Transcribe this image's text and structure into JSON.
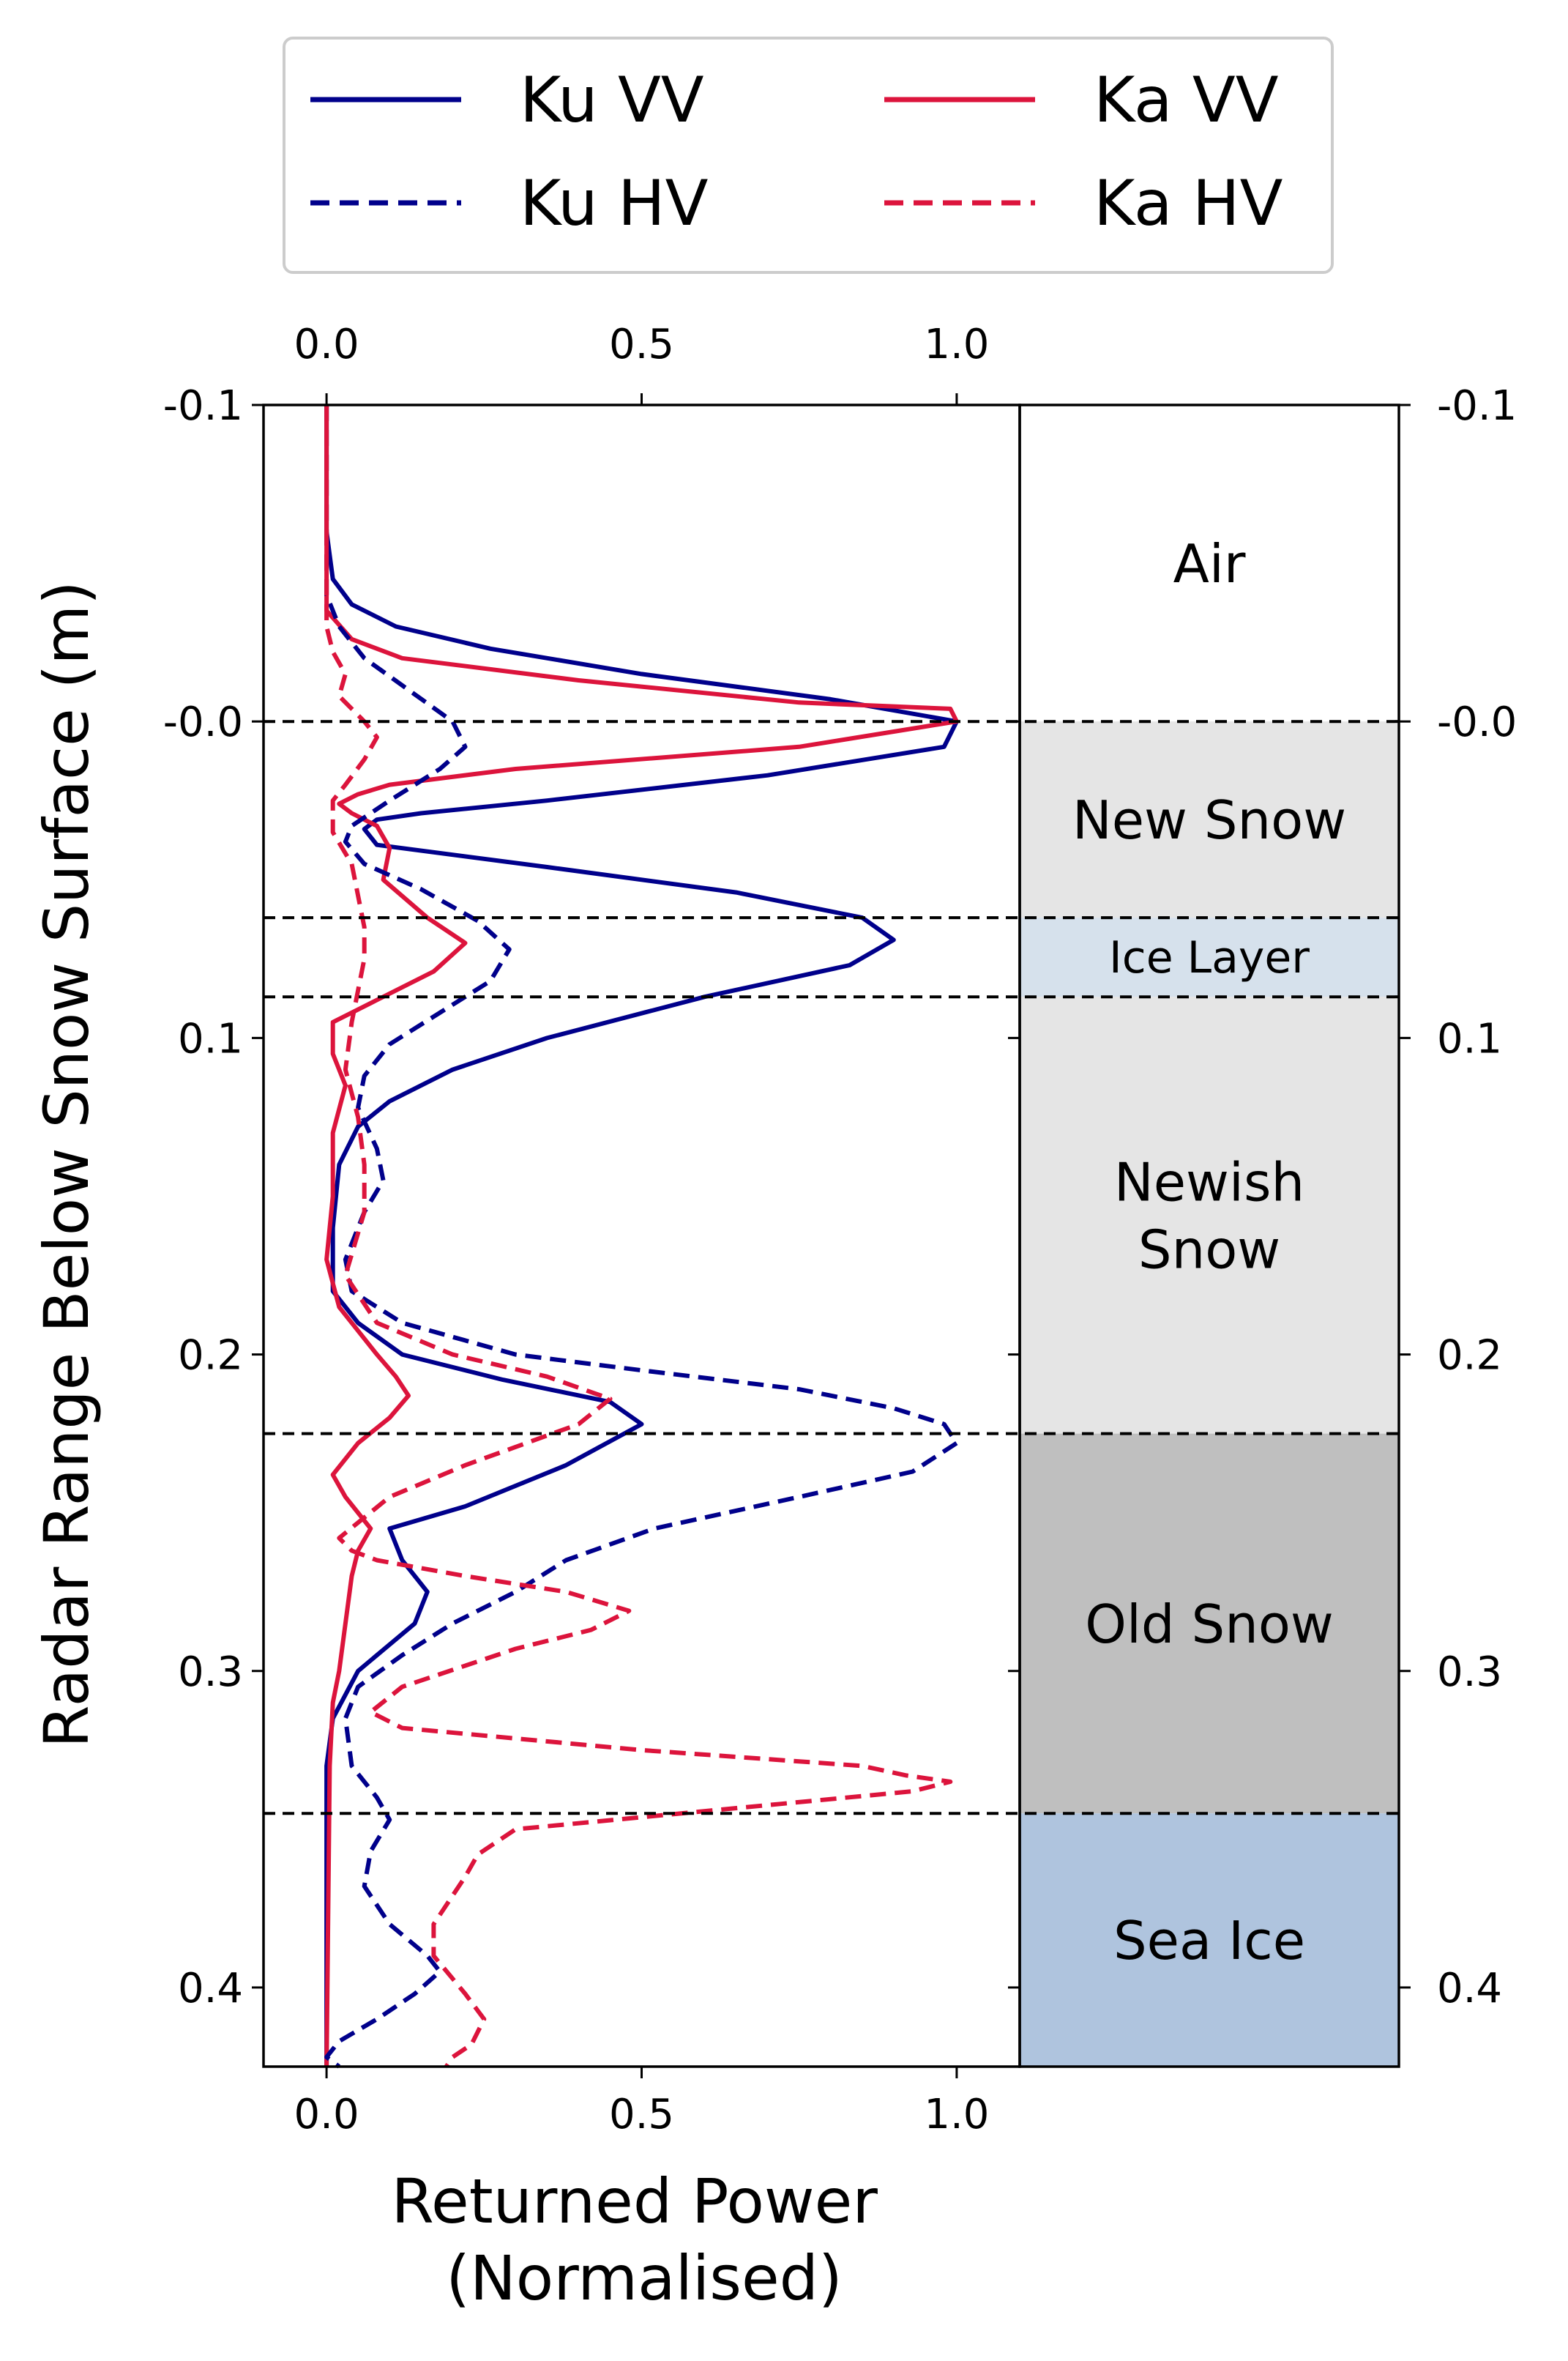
{
  "chart_data": {
    "type": "line",
    "ylabel": "Radar Range Below Snow Surface (m)",
    "xlabel_lines": [
      "Returned Power",
      "(Normalised)"
    ],
    "xlim": [
      -0.1,
      1.1
    ],
    "ylim": [
      0.425,
      -0.1
    ],
    "y_invert": true,
    "xticks": [
      0.0,
      0.5,
      1.0
    ],
    "xtick_labels": [
      "0.0",
      "0.5",
      "1.0"
    ],
    "yticks": [
      -0.1,
      0.0,
      0.1,
      0.2,
      0.3,
      0.4
    ],
    "ytick_labels": [
      "-0.1",
      "-0.0",
      "0.1",
      "0.2",
      "0.3",
      "0.4"
    ],
    "legend_position": "top (above plot)",
    "legend": [
      {
        "name": "Ku VV",
        "color": "#00008b",
        "dash": "solid"
      },
      {
        "name": "Ku HV",
        "color": "#00008b",
        "dash": "dashed"
      },
      {
        "name": "Ka VV",
        "color": "#dc143c",
        "dash": "solid"
      },
      {
        "name": "Ka HV",
        "color": "#dc143c",
        "dash": "dashed"
      }
    ],
    "series": [
      {
        "name": "Ku VV",
        "color": "#00008b",
        "dash": "solid",
        "points": [
          [
            0.0,
            -0.1
          ],
          [
            0.0,
            -0.06
          ],
          [
            0.01,
            -0.045
          ],
          [
            0.04,
            -0.037
          ],
          [
            0.11,
            -0.03
          ],
          [
            0.26,
            -0.023
          ],
          [
            0.5,
            -0.015
          ],
          [
            0.8,
            -0.007
          ],
          [
            1.0,
            0.0
          ],
          [
            0.98,
            0.008
          ],
          [
            0.7,
            0.017
          ],
          [
            0.35,
            0.025
          ],
          [
            0.15,
            0.029
          ],
          [
            0.08,
            0.031
          ],
          [
            0.06,
            0.034
          ],
          [
            0.08,
            0.039
          ],
          [
            0.35,
            0.046
          ],
          [
            0.65,
            0.054
          ],
          [
            0.85,
            0.062
          ],
          [
            0.9,
            0.069
          ],
          [
            0.83,
            0.077
          ],
          [
            0.6,
            0.087
          ],
          [
            0.35,
            0.1
          ],
          [
            0.2,
            0.11
          ],
          [
            0.1,
            0.12
          ],
          [
            0.05,
            0.128
          ],
          [
            0.02,
            0.14
          ],
          [
            0.01,
            0.16
          ],
          [
            0.01,
            0.18
          ],
          [
            0.05,
            0.19
          ],
          [
            0.12,
            0.2
          ],
          [
            0.28,
            0.208
          ],
          [
            0.45,
            0.215
          ],
          [
            0.5,
            0.222
          ],
          [
            0.38,
            0.235
          ],
          [
            0.22,
            0.248
          ],
          [
            0.1,
            0.255
          ],
          [
            0.12,
            0.265
          ],
          [
            0.16,
            0.275
          ],
          [
            0.14,
            0.285
          ],
          [
            0.05,
            0.3
          ],
          [
            0.01,
            0.315
          ],
          [
            0.0,
            0.33
          ],
          [
            0.0,
            0.425
          ]
        ]
      },
      {
        "name": "Ka VV",
        "color": "#dc143c",
        "dash": "solid",
        "points": [
          [
            0.0,
            -0.1
          ],
          [
            0.0,
            -0.035
          ],
          [
            0.04,
            -0.026
          ],
          [
            0.12,
            -0.02
          ],
          [
            0.4,
            -0.013
          ],
          [
            0.75,
            -0.006
          ],
          [
            0.99,
            -0.004
          ],
          [
            1.0,
            0.0
          ],
          [
            0.75,
            0.008
          ],
          [
            0.3,
            0.015
          ],
          [
            0.1,
            0.02
          ],
          [
            0.05,
            0.023
          ],
          [
            0.02,
            0.026
          ],
          [
            0.04,
            0.029
          ],
          [
            0.08,
            0.033
          ],
          [
            0.1,
            0.04
          ],
          [
            0.09,
            0.05
          ],
          [
            0.16,
            0.062
          ],
          [
            0.22,
            0.07
          ],
          [
            0.17,
            0.079
          ],
          [
            0.08,
            0.088
          ],
          [
            0.01,
            0.095
          ],
          [
            0.01,
            0.105
          ],
          [
            0.03,
            0.115
          ],
          [
            0.01,
            0.13
          ],
          [
            0.01,
            0.15
          ],
          [
            0.0,
            0.17
          ],
          [
            0.02,
            0.185
          ],
          [
            0.08,
            0.2
          ],
          [
            0.11,
            0.207
          ],
          [
            0.13,
            0.213
          ],
          [
            0.1,
            0.22
          ],
          [
            0.05,
            0.228
          ],
          [
            0.01,
            0.238
          ],
          [
            0.03,
            0.245
          ],
          [
            0.07,
            0.255
          ],
          [
            0.05,
            0.262
          ],
          [
            0.04,
            0.27
          ],
          [
            0.03,
            0.285
          ],
          [
            0.02,
            0.3
          ],
          [
            0.01,
            0.31
          ],
          [
            0.005,
            0.33
          ],
          [
            0.0,
            0.425
          ]
        ]
      },
      {
        "name": "Ku HV",
        "color": "#00008b",
        "dash": "dashed",
        "points": [
          [
            0.0,
            -0.1
          ],
          [
            0.0,
            -0.04
          ],
          [
            0.02,
            -0.03
          ],
          [
            0.06,
            -0.02
          ],
          [
            0.13,
            -0.01
          ],
          [
            0.2,
            0.0
          ],
          [
            0.22,
            0.008
          ],
          [
            0.18,
            0.015
          ],
          [
            0.1,
            0.025
          ],
          [
            0.04,
            0.033
          ],
          [
            0.03,
            0.038
          ],
          [
            0.06,
            0.045
          ],
          [
            0.15,
            0.053
          ],
          [
            0.24,
            0.063
          ],
          [
            0.29,
            0.072
          ],
          [
            0.26,
            0.082
          ],
          [
            0.18,
            0.092
          ],
          [
            0.1,
            0.102
          ],
          [
            0.06,
            0.112
          ],
          [
            0.05,
            0.122
          ],
          [
            0.08,
            0.135
          ],
          [
            0.09,
            0.145
          ],
          [
            0.06,
            0.155
          ],
          [
            0.03,
            0.17
          ],
          [
            0.04,
            0.18
          ],
          [
            0.12,
            0.19
          ],
          [
            0.3,
            0.2
          ],
          [
            0.5,
            0.205
          ],
          [
            0.75,
            0.211
          ],
          [
            0.9,
            0.217
          ],
          [
            0.98,
            0.222
          ],
          [
            1.0,
            0.228
          ],
          [
            0.93,
            0.237
          ],
          [
            0.75,
            0.245
          ],
          [
            0.52,
            0.255
          ],
          [
            0.38,
            0.265
          ],
          [
            0.3,
            0.275
          ],
          [
            0.2,
            0.285
          ],
          [
            0.12,
            0.295
          ],
          [
            0.05,
            0.305
          ],
          [
            0.03,
            0.315
          ],
          [
            0.04,
            0.33
          ],
          [
            0.08,
            0.34
          ],
          [
            0.1,
            0.347
          ],
          [
            0.07,
            0.357
          ],
          [
            0.06,
            0.368
          ],
          [
            0.1,
            0.38
          ],
          [
            0.16,
            0.39
          ],
          [
            0.18,
            0.395
          ],
          [
            0.14,
            0.402
          ],
          [
            0.08,
            0.41
          ],
          [
            0.02,
            0.417
          ],
          [
            0.0,
            0.422
          ],
          [
            0.02,
            0.425
          ]
        ]
      },
      {
        "name": "Ka HV",
        "color": "#dc143c",
        "dash": "dashed",
        "points": [
          [
            0.0,
            -0.1
          ],
          [
            0.0,
            -0.03
          ],
          [
            0.01,
            -0.022
          ],
          [
            0.03,
            -0.015
          ],
          [
            0.02,
            -0.008
          ],
          [
            0.06,
            0.0
          ],
          [
            0.08,
            0.005
          ],
          [
            0.06,
            0.012
          ],
          [
            0.03,
            0.02
          ],
          [
            0.01,
            0.025
          ],
          [
            0.01,
            0.035
          ],
          [
            0.04,
            0.045
          ],
          [
            0.05,
            0.055
          ],
          [
            0.06,
            0.065
          ],
          [
            0.06,
            0.075
          ],
          [
            0.05,
            0.085
          ],
          [
            0.04,
            0.095
          ],
          [
            0.03,
            0.11
          ],
          [
            0.05,
            0.125
          ],
          [
            0.06,
            0.14
          ],
          [
            0.06,
            0.155
          ],
          [
            0.03,
            0.175
          ],
          [
            0.08,
            0.19
          ],
          [
            0.2,
            0.2
          ],
          [
            0.35,
            0.207
          ],
          [
            0.45,
            0.214
          ],
          [
            0.4,
            0.222
          ],
          [
            0.22,
            0.235
          ],
          [
            0.1,
            0.245
          ],
          [
            0.02,
            0.258
          ],
          [
            0.04,
            0.262
          ],
          [
            0.08,
            0.265
          ],
          [
            0.22,
            0.27
          ],
          [
            0.38,
            0.275
          ],
          [
            0.48,
            0.281
          ],
          [
            0.42,
            0.287
          ],
          [
            0.3,
            0.293
          ],
          [
            0.12,
            0.305
          ],
          [
            0.07,
            0.313
          ],
          [
            0.12,
            0.318
          ],
          [
            0.5,
            0.325
          ],
          [
            0.85,
            0.33
          ],
          [
            0.92,
            0.333
          ],
          [
            0.99,
            0.335
          ],
          [
            0.93,
            0.338
          ],
          [
            0.72,
            0.342
          ],
          [
            0.3,
            0.35
          ],
          [
            0.24,
            0.358
          ],
          [
            0.22,
            0.365
          ],
          [
            0.17,
            0.38
          ],
          [
            0.17,
            0.39
          ],
          [
            0.22,
            0.402
          ],
          [
            0.25,
            0.41
          ],
          [
            0.23,
            0.418
          ],
          [
            0.2,
            0.422
          ],
          [
            0.19,
            0.425
          ]
        ]
      }
    ],
    "boundaries": [
      0.0,
      0.062,
      0.087,
      0.225,
      0.345
    ],
    "layers": [
      {
        "label": "Air",
        "top": -0.1,
        "bottom": 0.0,
        "color": "#ffffff"
      },
      {
        "label": "New Snow",
        "top": 0.0,
        "bottom": 0.062,
        "color": "#e5e5e5"
      },
      {
        "label": "Ice Layer",
        "top": 0.062,
        "bottom": 0.087,
        "color": "#d6e1ec"
      },
      {
        "label": "Newish\nSnow",
        "top": 0.087,
        "bottom": 0.225,
        "color": "#e5e5e5"
      },
      {
        "label": "Old Snow",
        "top": 0.225,
        "bottom": 0.345,
        "color": "#bfbfbf"
      },
      {
        "label": "Sea Ice",
        "top": 0.345,
        "bottom": 0.425,
        "color": "#afc4de"
      }
    ]
  }
}
